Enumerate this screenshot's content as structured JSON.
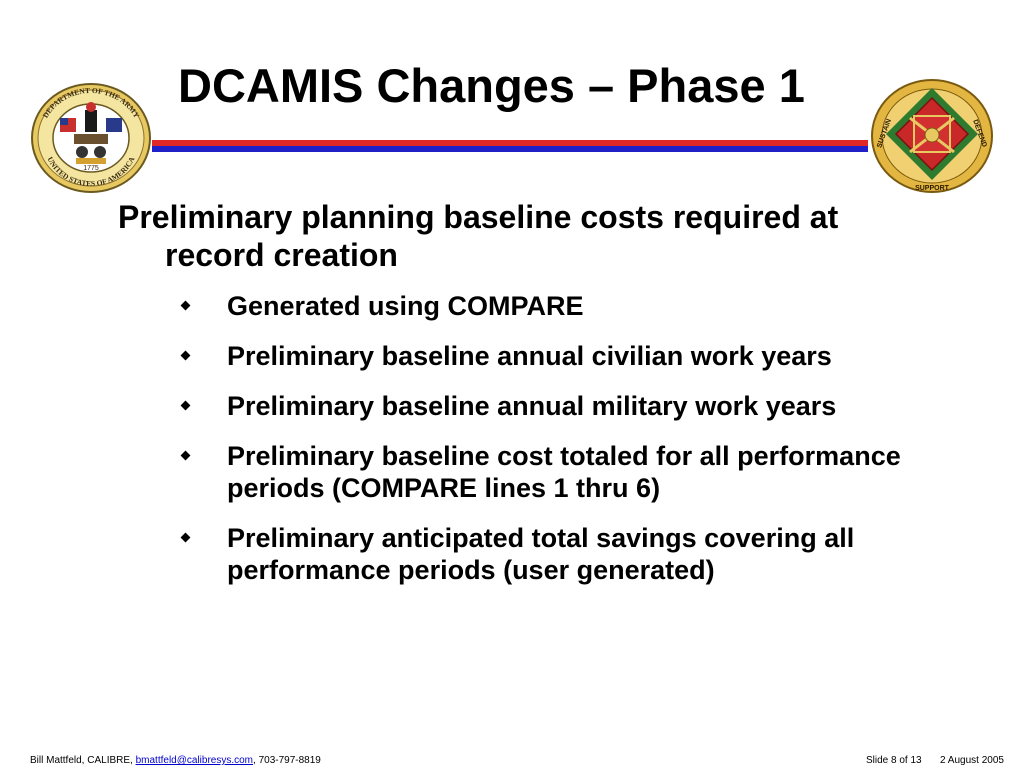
{
  "title": "DCAMIS Changes – Phase 1",
  "main_point": {
    "line1": "Preliminary planning baseline costs required at",
    "line2": "record creation"
  },
  "bullets": [
    "Generated using COMPARE",
    "Preliminary baseline annual civilian work years",
    "Preliminary baseline annual military work years",
    "Preliminary baseline cost totaled for all performance periods (COMPARE lines 1 thru 6)",
    "Preliminary anticipated total savings covering all performance periods (user generated)"
  ],
  "logos": {
    "left": {
      "icon": "department-of-the-army-seal-icon",
      "text_top": "DEPARTMENT OF THE ARMY",
      "text_bottom": "UNITED STATES OF AMERICA",
      "year": "1775"
    },
    "right": {
      "icon": "installation-management-crest-icon",
      "left_text": "SUSTAIN",
      "bottom_text": "SUPPORT",
      "right_text": "DEFEND"
    }
  },
  "footer": {
    "author": "Bill Mattfeld, CALIBRE, ",
    "email": "bmattfeld@calibresys.com",
    "phone": ", 703-797-8819",
    "slide_number": "Slide 8 of 13",
    "date": "2 August 2005"
  },
  "colors": {
    "rule_red": "#e02828",
    "rule_blue": "#2020c8",
    "link": "#0000cc"
  }
}
